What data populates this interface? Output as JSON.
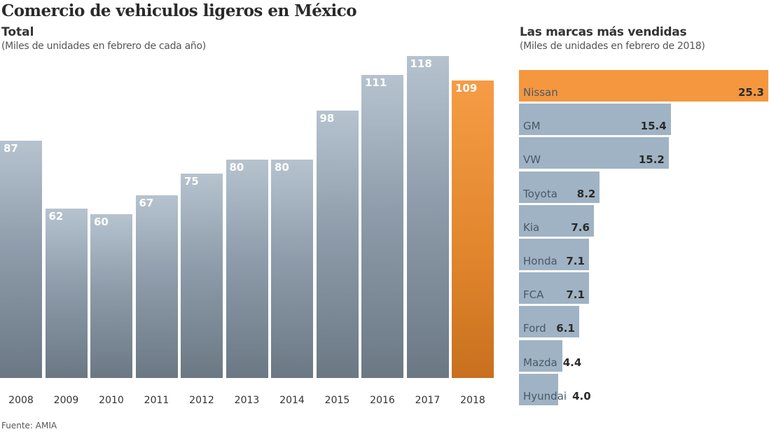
{
  "title": "Comercio de vehiculos ligeros en México",
  "source": "Fuente: AMIA",
  "colors": {
    "bar": "#9fb3c4",
    "highlight": "#f4973f"
  },
  "chart_data": [
    {
      "type": "bar",
      "title": "Total",
      "subtitle": "(Miles de unidades en febrero de cada año)",
      "categories": [
        "2008",
        "2009",
        "2010",
        "2011",
        "2012",
        "2013",
        "2014",
        "2015",
        "2016",
        "2017",
        "2018"
      ],
      "values": [
        87,
        62,
        60,
        67,
        75,
        80,
        80,
        98,
        111,
        118,
        109
      ],
      "highlight": "2018",
      "ylim": [
        0,
        118
      ]
    },
    {
      "type": "bar",
      "orientation": "horizontal",
      "title": "Las marcas más vendidas",
      "subtitle": "(Miles de unidades en febrero de 2018)",
      "categories": [
        "Nissan",
        "GM",
        "VW",
        "Toyota",
        "Kia",
        "Honda",
        "FCA",
        "Ford",
        "Mazda",
        "Hyundai"
      ],
      "values": [
        25.3,
        15.4,
        15.2,
        8.2,
        7.6,
        7.1,
        7.1,
        6.1,
        4.4,
        4.0
      ],
      "labels": [
        "25.3",
        "15.4",
        "15.2",
        "8.2",
        "7.6",
        "7.1",
        "7.1",
        "6.1",
        "4.4",
        "4.0"
      ],
      "highlight": "Nissan",
      "xlim": [
        0,
        25.3
      ]
    }
  ]
}
